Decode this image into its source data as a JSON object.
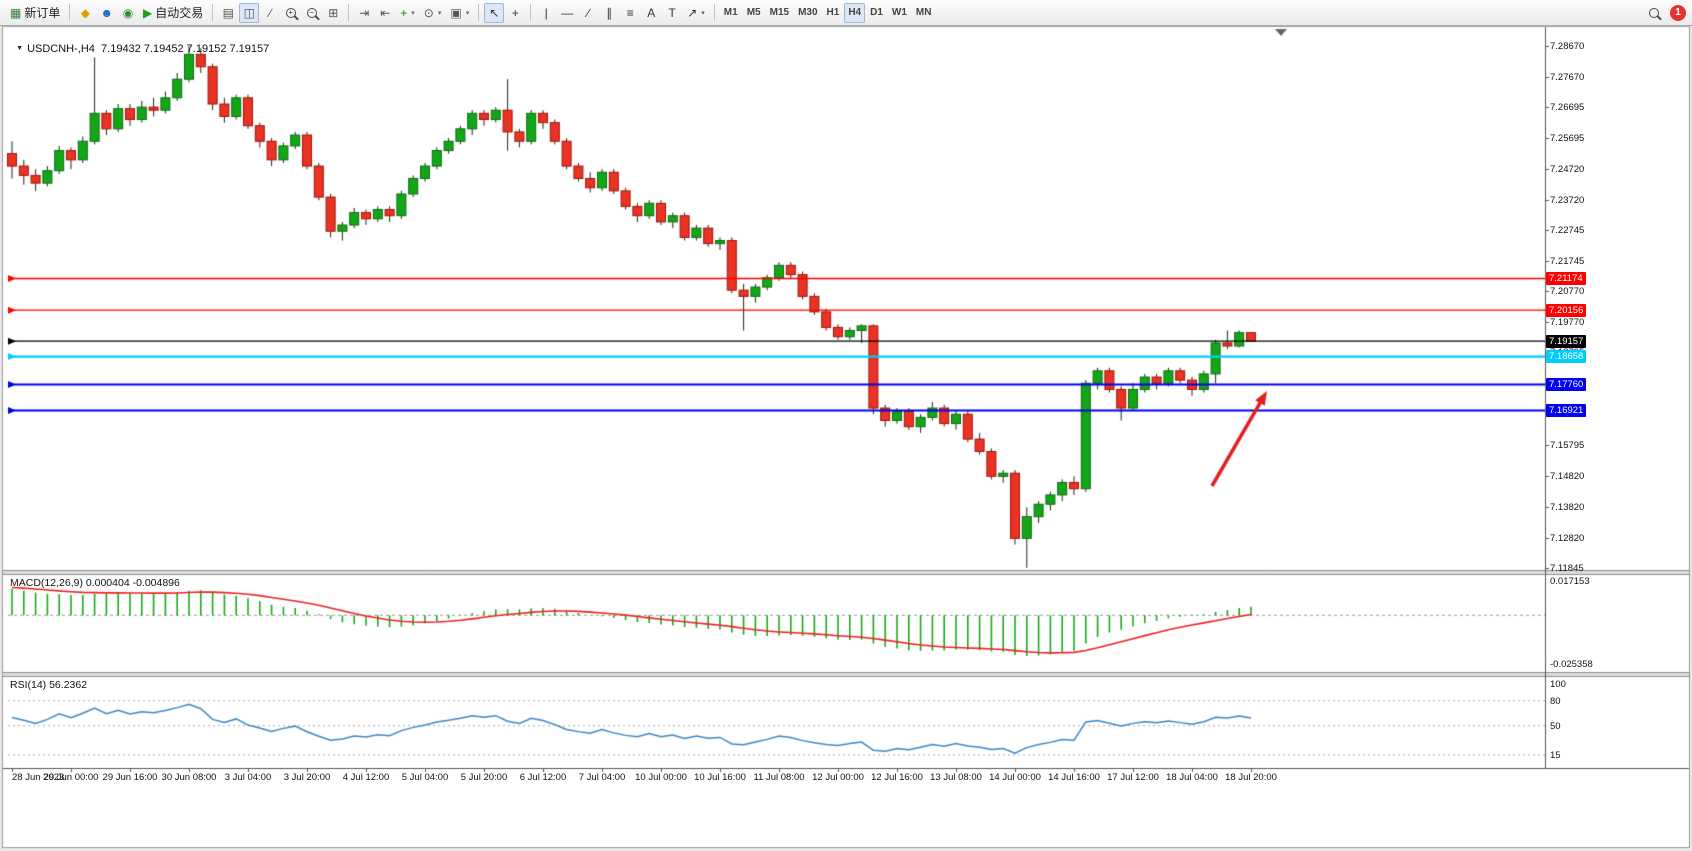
{
  "toolbar": {
    "notification_count": "1",
    "active_timeframe": "H4",
    "timeframes": [
      "M1",
      "M5",
      "M15",
      "M30",
      "H1",
      "H4",
      "D1",
      "W1",
      "MN"
    ],
    "items": [
      {
        "name": "new-order-button",
        "glyph": "▦",
        "glyph_color": "#2e7d32",
        "label": "新订单"
      },
      {
        "divider": true
      },
      {
        "name": "mql5-market-button",
        "glyph": "◆",
        "glyph_color": "#d7a500"
      },
      {
        "name": "community-button",
        "glyph": "☻",
        "glyph_color": "#1565c0"
      },
      {
        "name": "support-button",
        "glyph": "◉",
        "glyph_color": "#2e8b2e"
      },
      {
        "name": "autotrade-button",
        "glyph": "▶",
        "glyph_color": "#18a018",
        "label": "自动交易"
      },
      {
        "divider": true
      },
      {
        "name": "chart-bars-button",
        "glyph": "▤",
        "glyph_color": "#555"
      },
      {
        "name": "chart-candles-button",
        "glyph": "◫",
        "glyph_color": "#555",
        "pressed": true
      },
      {
        "name": "chart-line-button",
        "glyph": "∕",
        "glyph_color": "#555"
      },
      {
        "name": "zoom-in-button",
        "mag": "+"
      },
      {
        "name": "zoom-out-button",
        "mag": "−"
      },
      {
        "name": "tile-windows-button",
        "glyph": "⊞",
        "glyph_color": "#555"
      },
      {
        "divider": true
      },
      {
        "name": "auto-scroll-button",
        "glyph": "⇥",
        "glyph_color": "#555"
      },
      {
        "name": "chart-shift-button",
        "glyph": "⇤",
        "glyph_color": "#555"
      },
      {
        "name": "indicators-button",
        "glyph": "+",
        "glyph_color": "#0a8f08",
        "caret": true
      },
      {
        "name": "periods-button",
        "glyph": "⊙",
        "glyph_color": "#555",
        "caret": true
      },
      {
        "name": "templates-button",
        "glyph": "▣",
        "glyph_color": "#555",
        "caret": true
      },
      {
        "divider": true
      },
      {
        "name": "cursor-button",
        "glyph": "↖",
        "glyph_color": "#333",
        "pressed": true
      },
      {
        "name": "crosshair-button",
        "glyph": "+",
        "glyph_color": "#333"
      },
      {
        "divider": true
      },
      {
        "name": "vertical-line-button",
        "glyph": "|",
        "glyph_color": "#333"
      },
      {
        "name": "horizontal-line-button",
        "glyph": "—",
        "glyph_color": "#333"
      },
      {
        "name": "trendline-button",
        "glyph": "∕",
        "glyph_color": "#333"
      },
      {
        "name": "channel-button",
        "glyph": "∥",
        "glyph_color": "#333"
      },
      {
        "name": "fibonacci-button",
        "glyph": "≡",
        "glyph_color": "#333"
      },
      {
        "name": "text-button",
        "glyph": "A",
        "glyph_color": "#333"
      },
      {
        "name": "label-button",
        "glyph": "T",
        "glyph_color": "#333"
      },
      {
        "name": "arrows-button",
        "glyph": "↗",
        "glyph_color": "#333",
        "caret": true
      },
      {
        "divider": true
      }
    ]
  },
  "chart_header": {
    "collapse_icon": "▼",
    "symbol_text": "USDCNH-,H4",
    "ohlc_text": "7.19432 7.19452 7.19152 7.19157"
  },
  "chart_data": {
    "type": "candlestick",
    "symbol": "USDCNH-",
    "timeframe": "H4",
    "last_ohlc": {
      "open": "7.19432",
      "high": "7.19452",
      "low": "7.19152",
      "close": "7.19157"
    },
    "colors": {
      "up": "#13a718",
      "down": "#e93325",
      "up_border": "#0b6b10",
      "down_border": "#a31208",
      "wick": "#222222"
    },
    "price_axis_labels": [
      "7.28670",
      "7.27670",
      "7.26695",
      "7.25695",
      "7.24720",
      "7.23720",
      "7.22745",
      "7.21745",
      "7.20770",
      "7.19770",
      "7.18795",
      "7.17795",
      "7.16820",
      "7.15795",
      "7.14820",
      "7.13820",
      "7.12820",
      "7.11845"
    ],
    "time_axis_labels": [
      "28 Jun 2023",
      "29 Jun 00:00",
      "29 Jun 16:00",
      "30 Jun 08:00",
      "3 Jul 04:00",
      "3 Jul 20:00",
      "4 Jul 12:00",
      "5 Jul 04:00",
      "5 Jul 20:00",
      "6 Jul 12:00",
      "7 Jul 04:00",
      "10 Jul 00:00",
      "10 Jul 16:00",
      "11 Jul 08:00",
      "12 Jul 00:00",
      "12 Jul 16:00",
      "13 Jul 08:00",
      "14 Jul 00:00",
      "14 Jul 16:00",
      "17 Jul 12:00",
      "18 Jul 04:00",
      "18 Jul 20:00"
    ],
    "horizontal_lines": [
      {
        "name": "resistance-line-tag",
        "value": "7.21174",
        "price": 7.21174,
        "color": "#ff0000",
        "width": 1.4
      },
      {
        "name": "resistance-line-tag",
        "value": "7.20156",
        "price": 7.20156,
        "color": "#ff0000",
        "width": 1.4
      },
      {
        "name": "current-price-tag",
        "value": "7.19157",
        "price": 7.19157,
        "color": "#000000",
        "width": 1.2
      },
      {
        "name": "support-line-tag",
        "value": "7.18658",
        "price": 7.18658,
        "color": "#00ccff",
        "width": 2.2
      },
      {
        "name": "support-line-tag",
        "value": "7.17760",
        "price": 7.1776,
        "color": "#0000ee",
        "width": 2.2
      },
      {
        "name": "support-line-tag",
        "value": "7.16921",
        "price": 7.16921,
        "color": "#0000ee",
        "width": 2.2
      }
    ],
    "candles": [
      [
        7.252,
        7.256,
        7.244,
        7.248
      ],
      [
        7.248,
        7.25,
        7.242,
        7.245
      ],
      [
        7.245,
        7.247,
        7.24,
        7.2425
      ],
      [
        7.2425,
        7.248,
        7.2415,
        7.2465
      ],
      [
        7.2465,
        7.2545,
        7.2455,
        7.253
      ],
      [
        7.253,
        7.254,
        7.247,
        7.25
      ],
      [
        7.25,
        7.2575,
        7.249,
        7.256
      ],
      [
        7.256,
        7.283,
        7.255,
        7.265
      ],
      [
        7.265,
        7.266,
        7.258,
        7.26
      ],
      [
        7.26,
        7.268,
        7.259,
        7.2665
      ],
      [
        7.2665,
        7.268,
        7.261,
        7.263
      ],
      [
        7.263,
        7.269,
        7.262,
        7.267
      ],
      [
        7.267,
        7.27,
        7.264,
        7.266
      ],
      [
        7.266,
        7.272,
        7.265,
        7.27
      ],
      [
        7.27,
        7.278,
        7.269,
        7.276
      ],
      [
        7.276,
        7.2867,
        7.275,
        7.284
      ],
      [
        7.284,
        7.286,
        7.278,
        7.28
      ],
      [
        7.28,
        7.281,
        7.266,
        7.268
      ],
      [
        7.268,
        7.27,
        7.262,
        7.264
      ],
      [
        7.264,
        7.271,
        7.263,
        7.27
      ],
      [
        7.27,
        7.271,
        7.26,
        7.261
      ],
      [
        7.261,
        7.262,
        7.254,
        7.256
      ],
      [
        7.256,
        7.257,
        7.248,
        7.25
      ],
      [
        7.25,
        7.2555,
        7.249,
        7.2545
      ],
      [
        7.2545,
        7.259,
        7.2535,
        7.258
      ],
      [
        7.258,
        7.259,
        7.247,
        7.248
      ],
      [
        7.248,
        7.249,
        7.237,
        7.238
      ],
      [
        7.238,
        7.239,
        7.225,
        7.227
      ],
      [
        7.227,
        7.23,
        7.224,
        7.229
      ],
      [
        7.229,
        7.2345,
        7.228,
        7.233
      ],
      [
        7.233,
        7.234,
        7.229,
        7.231
      ],
      [
        7.231,
        7.235,
        7.23,
        7.234
      ],
      [
        7.234,
        7.235,
        7.23,
        7.232
      ],
      [
        7.232,
        7.24,
        7.231,
        7.239
      ],
      [
        7.239,
        7.245,
        7.238,
        7.244
      ],
      [
        7.244,
        7.249,
        7.243,
        7.248
      ],
      [
        7.248,
        7.254,
        7.247,
        7.253
      ],
      [
        7.253,
        7.257,
        7.252,
        7.256
      ],
      [
        7.256,
        7.261,
        7.255,
        7.26
      ],
      [
        7.26,
        7.266,
        7.258,
        7.265
      ],
      [
        7.265,
        7.266,
        7.261,
        7.263
      ],
      [
        7.263,
        7.267,
        7.262,
        7.266
      ],
      [
        7.266,
        7.276,
        7.253,
        7.259
      ],
      [
        7.259,
        7.26,
        7.254,
        7.256
      ],
      [
        7.256,
        7.266,
        7.255,
        7.265
      ],
      [
        7.265,
        7.266,
        7.26,
        7.262
      ],
      [
        7.262,
        7.263,
        7.255,
        7.256
      ],
      [
        7.256,
        7.257,
        7.247,
        7.248
      ],
      [
        7.248,
        7.249,
        7.243,
        7.244
      ],
      [
        7.244,
        7.246,
        7.2395,
        7.241
      ],
      [
        7.241,
        7.247,
        7.24,
        7.246
      ],
      [
        7.246,
        7.247,
        7.239,
        7.24
      ],
      [
        7.24,
        7.241,
        7.234,
        7.235
      ],
      [
        7.235,
        7.236,
        7.23,
        7.232
      ],
      [
        7.232,
        7.237,
        7.231,
        7.236
      ],
      [
        7.236,
        7.237,
        7.229,
        7.23
      ],
      [
        7.23,
        7.233,
        7.228,
        7.232
      ],
      [
        7.232,
        7.233,
        7.224,
        7.225
      ],
      [
        7.225,
        7.229,
        7.224,
        7.228
      ],
      [
        7.228,
        7.229,
        7.222,
        7.223
      ],
      [
        7.223,
        7.225,
        7.221,
        7.224
      ],
      [
        7.224,
        7.225,
        7.207,
        7.208
      ],
      [
        7.208,
        7.21,
        7.195,
        7.206
      ],
      [
        7.206,
        7.21,
        7.204,
        7.209
      ],
      [
        7.209,
        7.213,
        7.208,
        7.212
      ],
      [
        7.212,
        7.217,
        7.211,
        7.216
      ],
      [
        7.216,
        7.217,
        7.212,
        7.213
      ],
      [
        7.213,
        7.214,
        7.205,
        7.206
      ],
      [
        7.206,
        7.207,
        7.2,
        7.201
      ],
      [
        7.201,
        7.202,
        7.195,
        7.196
      ],
      [
        7.196,
        7.197,
        7.192,
        7.193
      ],
      [
        7.193,
        7.196,
        7.192,
        7.195
      ],
      [
        7.195,
        7.197,
        7.191,
        7.1965
      ],
      [
        7.1965,
        7.197,
        7.168,
        7.17
      ],
      [
        7.17,
        7.171,
        7.164,
        7.166
      ],
      [
        7.166,
        7.17,
        7.165,
        7.169
      ],
      [
        7.169,
        7.17,
        7.163,
        7.164
      ],
      [
        7.164,
        7.168,
        7.162,
        7.167
      ],
      [
        7.167,
        7.172,
        7.166,
        7.17
      ],
      [
        7.17,
        7.171,
        7.164,
        7.165
      ],
      [
        7.165,
        7.169,
        7.163,
        7.168
      ],
      [
        7.168,
        7.169,
        7.159,
        7.16
      ],
      [
        7.16,
        7.162,
        7.155,
        7.156
      ],
      [
        7.156,
        7.157,
        7.147,
        7.148
      ],
      [
        7.148,
        7.15,
        7.146,
        7.149
      ],
      [
        7.149,
        7.15,
        7.126,
        7.128
      ],
      [
        7.128,
        7.138,
        7.1185,
        7.135
      ],
      [
        7.135,
        7.14,
        7.133,
        7.139
      ],
      [
        7.139,
        7.143,
        7.137,
        7.142
      ],
      [
        7.142,
        7.147,
        7.14,
        7.146
      ],
      [
        7.146,
        7.148,
        7.142,
        7.144
      ],
      [
        7.144,
        7.179,
        7.143,
        7.178
      ],
      [
        7.178,
        7.183,
        7.176,
        7.182
      ],
      [
        7.182,
        7.183,
        7.175,
        7.176
      ],
      [
        7.176,
        7.177,
        7.166,
        7.17
      ],
      [
        7.17,
        7.178,
        7.169,
        7.176
      ],
      [
        7.176,
        7.181,
        7.175,
        7.18
      ],
      [
        7.18,
        7.181,
        7.176,
        7.178
      ],
      [
        7.178,
        7.183,
        7.177,
        7.182
      ],
      [
        7.182,
        7.183,
        7.178,
        7.179
      ],
      [
        7.179,
        7.18,
        7.174,
        7.176
      ],
      [
        7.176,
        7.182,
        7.175,
        7.181
      ],
      [
        7.181,
        7.192,
        7.178,
        7.191
      ],
      [
        7.191,
        7.195,
        7.189,
        7.19
      ],
      [
        7.19,
        7.195,
        7.1895,
        7.1943
      ],
      [
        7.19432,
        7.19452,
        7.19152,
        7.19157
      ]
    ],
    "indicators": {
      "macd": {
        "header": "MACD(12,26,9) 0.000404 -0.004896",
        "label": "MACD(12,26,9)",
        "value_main": "0.000404",
        "value_signal": "-0.004896",
        "axis_top": "0.017153",
        "axis_bottom": "-0.025358",
        "histogram_color": "#19a819",
        "signal_color": "#ee2222"
      },
      "rsi": {
        "header": "RSI(14) 56.2362",
        "label": "RSI(14)",
        "value": "56.2362",
        "levels": [
          "100",
          "80",
          "50",
          "15"
        ],
        "dash_levels": [
          80,
          50,
          15
        ],
        "line_color": "#3d85c8"
      }
    },
    "annotations": [
      {
        "type": "arrow",
        "color": "#e02020",
        "note": "red arrow pointing up toward the 7.17760 support line",
        "tail": [
          1212,
          486
        ],
        "tip": [
          1267,
          391
        ]
      }
    ]
  }
}
